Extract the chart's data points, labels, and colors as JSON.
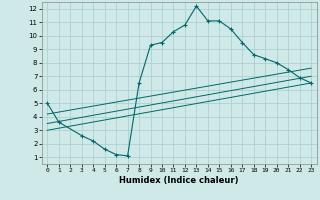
{
  "xlabel": "Humidex (Indice chaleur)",
  "bg_color": "#cfe8e8",
  "grid_color": "#a8cccc",
  "line_color": "#006868",
  "xlim": [
    -0.5,
    23.5
  ],
  "ylim": [
    0.5,
    12.5
  ],
  "xticks": [
    0,
    1,
    2,
    3,
    4,
    5,
    6,
    7,
    8,
    9,
    10,
    11,
    12,
    13,
    14,
    15,
    16,
    17,
    18,
    19,
    20,
    21,
    22,
    23
  ],
  "yticks": [
    1,
    2,
    3,
    4,
    5,
    6,
    7,
    8,
    9,
    10,
    11,
    12
  ],
  "main_line": {
    "x": [
      0,
      1,
      3,
      4,
      5,
      6,
      7,
      8,
      9,
      10,
      11,
      12,
      13,
      14,
      15,
      16,
      17,
      18,
      19,
      20,
      21,
      22,
      23
    ],
    "y": [
      5.0,
      3.6,
      2.6,
      2.2,
      1.6,
      1.2,
      1.1,
      6.5,
      9.3,
      9.5,
      10.3,
      10.8,
      12.2,
      11.1,
      11.1,
      10.5,
      9.5,
      8.6,
      8.3,
      8.0,
      7.5,
      6.9,
      6.5
    ]
  },
  "straight_lines": [
    {
      "x": [
        0,
        23
      ],
      "y": [
        3.0,
        6.5
      ]
    },
    {
      "x": [
        0,
        23
      ],
      "y": [
        3.5,
        7.0
      ]
    },
    {
      "x": [
        0,
        23
      ],
      "y": [
        4.2,
        7.6
      ]
    }
  ]
}
